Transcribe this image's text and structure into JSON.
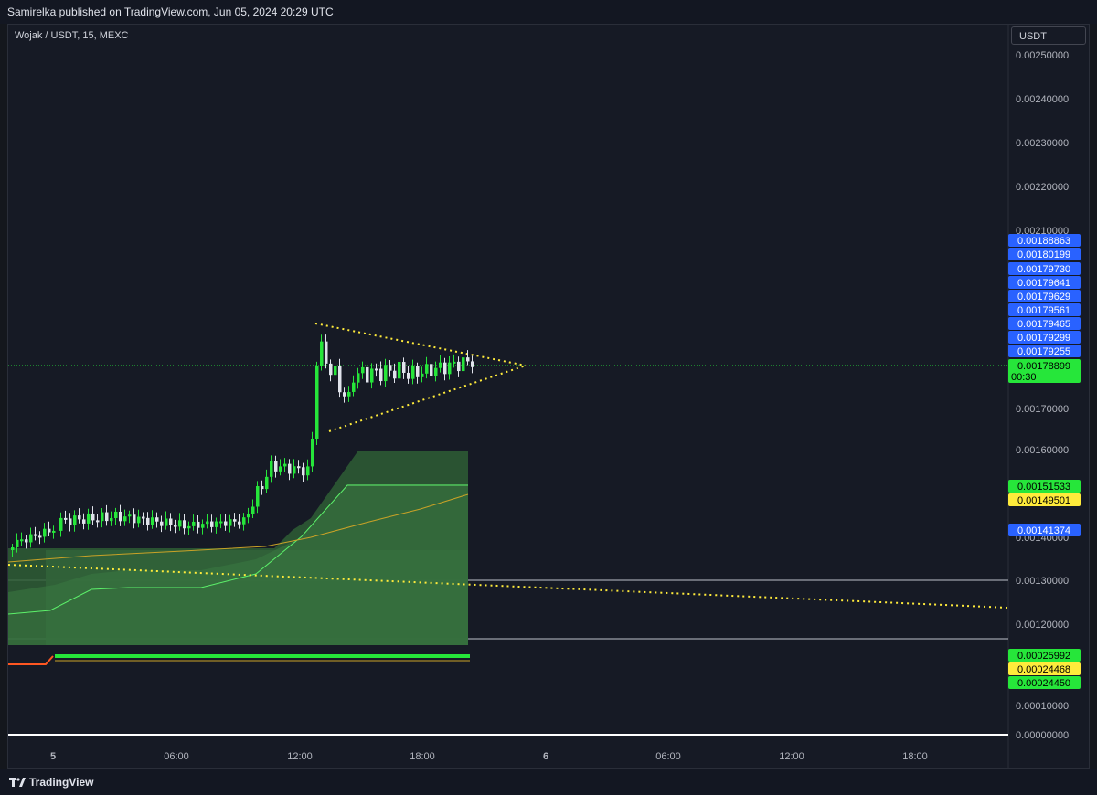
{
  "header": {
    "published": "Samirelka published on TradingView.com, Jun 05, 2024 20:29 UTC"
  },
  "chart_header": {
    "symbol": "Wojak / USDT, 15, MEXC",
    "currency": "USDT"
  },
  "footer": {
    "brand": "TradingView"
  },
  "colors": {
    "background": "#161a25",
    "bull": "#26e63a",
    "yellow": "#ffeb3b",
    "blue_tag": "#2962ff",
    "green_tag": "#26e63a"
  },
  "chart_data": {
    "type": "candlestick",
    "price_axis_ticks": [
      "0.00250000",
      "0.00240000",
      "0.00230000",
      "0.00220000",
      "0.00210000",
      "0.00170000",
      "0.00160000",
      "0.00140000",
      "0.00130000",
      "0.00120000",
      "0.00010000",
      "0.00000000"
    ],
    "time_axis_ticks": [
      "5",
      "06:00",
      "12:00",
      "18:00",
      "6",
      "06:00",
      "12:00",
      "18:00"
    ],
    "price_tags": [
      {
        "value": "0.00188863",
        "color": "#2962ff",
        "text_color": "#ffffff"
      },
      {
        "value": "0.00180199",
        "color": "#2962ff",
        "text_color": "#ffffff"
      },
      {
        "value": "0.00179730",
        "color": "#2962ff",
        "text_color": "#ffffff"
      },
      {
        "value": "0.00179641",
        "color": "#2962ff",
        "text_color": "#ffffff"
      },
      {
        "value": "0.00179629",
        "color": "#2962ff",
        "text_color": "#ffffff"
      },
      {
        "value": "0.00179561",
        "color": "#2962ff",
        "text_color": "#ffffff"
      },
      {
        "value": "0.00179465",
        "color": "#2962ff",
        "text_color": "#ffffff"
      },
      {
        "value": "0.00179299",
        "color": "#2962ff",
        "text_color": "#ffffff"
      },
      {
        "value": "0.00179255",
        "color": "#2962ff",
        "text_color": "#ffffff"
      },
      {
        "value": "0.00151533",
        "color": "#26e63a",
        "text_color": "#000000"
      },
      {
        "value": "0.00149501",
        "color": "#ffeb3b",
        "text_color": "#000000"
      },
      {
        "value": "0.00141374",
        "color": "#2962ff",
        "text_color": "#ffffff"
      },
      {
        "value": "0.00025992",
        "color": "#26e63a",
        "text_color": "#000000"
      },
      {
        "value": "0.00024468",
        "color": "#ffeb3b",
        "text_color": "#000000"
      },
      {
        "value": "0.00024450",
        "color": "#26e63a",
        "text_color": "#000000"
      }
    ],
    "last_price": {
      "value": "0.00178899",
      "countdown": "00:30"
    }
  }
}
